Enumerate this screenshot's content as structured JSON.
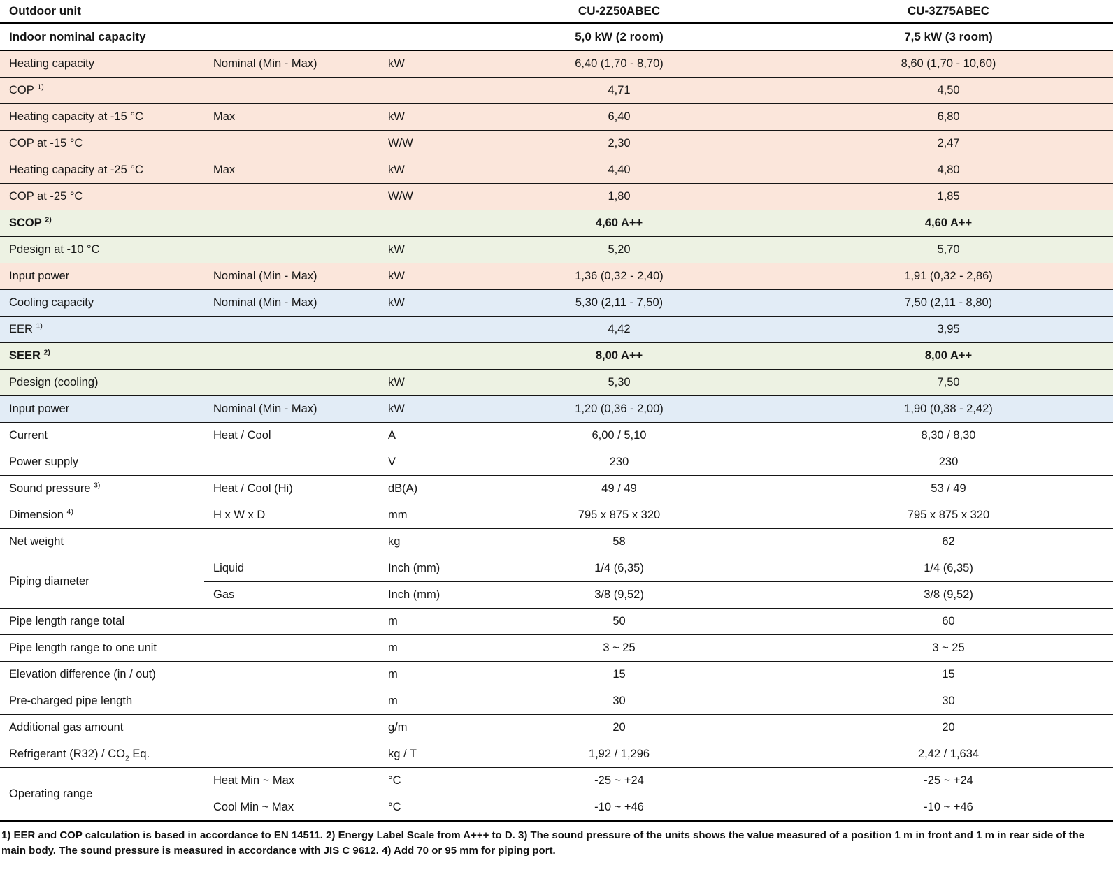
{
  "header": {
    "label": "Outdoor unit",
    "models": [
      "CU-2Z50ABEC",
      "CU-3Z75ABEC"
    ]
  },
  "subheader": {
    "label": "Indoor nominal capacity",
    "values": [
      "5,0 kW (2 room)",
      "7,5 kW (3 room)"
    ]
  },
  "colors": {
    "heating_row": "#fbe6db",
    "seasonal_row": "#edf2e3",
    "cooling_row": "#e2ecf6",
    "border": "#161616"
  },
  "rows": [
    {
      "label": "Heating capacity",
      "sub": "Nominal (Min - Max)",
      "unit": "kW",
      "v": [
        "6,40 (1,70 - 8,70)",
        "8,60 (1,70 - 10,60)"
      ],
      "bg": "pink"
    },
    {
      "label": "COP",
      "sup": "1)",
      "sub": "",
      "unit": "",
      "v": [
        "4,71",
        "4,50"
      ],
      "bg": "pink"
    },
    {
      "label": "Heating capacity at -15 °C",
      "sub": "Max",
      "unit": "kW",
      "v": [
        "6,40",
        "6,80"
      ],
      "bg": "pink"
    },
    {
      "label": "COP at -15 °C",
      "sub": "",
      "unit": "W/W",
      "v": [
        "2,30",
        "2,47"
      ],
      "bg": "pink"
    },
    {
      "label": "Heating capacity at -25 °C",
      "sub": "Max",
      "unit": "kW",
      "v": [
        "4,40",
        "4,80"
      ],
      "bg": "pink"
    },
    {
      "label": "COP at -25 °C",
      "sub": "",
      "unit": "W/W",
      "v": [
        "1,80",
        "1,85"
      ],
      "bg": "pink"
    },
    {
      "label": "SCOP",
      "sup": "2)",
      "sub": "",
      "unit": "",
      "v": [
        "4,60 A++",
        "4,60 A++"
      ],
      "bg": "green",
      "bold": true
    },
    {
      "label": "Pdesign at -10 °C",
      "sub": "",
      "unit": "kW",
      "v": [
        "5,20",
        "5,70"
      ],
      "bg": "green"
    },
    {
      "label": "Input power",
      "sub": "Nominal (Min - Max)",
      "unit": "kW",
      "v": [
        "1,36 (0,32 - 2,40)",
        "1,91 (0,32 - 2,86)"
      ],
      "bg": "pink"
    },
    {
      "label": "Cooling capacity",
      "sub": "Nominal (Min - Max)",
      "unit": "kW",
      "v": [
        "5,30 (2,11 - 7,50)",
        "7,50 (2,11 - 8,80)"
      ],
      "bg": "blue"
    },
    {
      "label": "EER",
      "sup": "1)",
      "sub": "",
      "unit": "",
      "v": [
        "4,42",
        "3,95"
      ],
      "bg": "blue"
    },
    {
      "label": "SEER",
      "sup": "2)",
      "sub": "",
      "unit": "",
      "v": [
        "8,00 A++",
        "8,00 A++"
      ],
      "bg": "green",
      "bold": true
    },
    {
      "label": "Pdesign (cooling)",
      "sub": "",
      "unit": "kW",
      "v": [
        "5,30",
        "7,50"
      ],
      "bg": "green"
    },
    {
      "label": "Input power",
      "sub": "Nominal (Min - Max)",
      "unit": "kW",
      "v": [
        "1,20 (0,36 - 2,00)",
        "1,90 (0,38 - 2,42)"
      ],
      "bg": "blue"
    },
    {
      "label": "Current",
      "sub": "Heat / Cool",
      "unit": "A",
      "v": [
        "6,00 / 5,10",
        "8,30 / 8,30"
      ],
      "bg": "white"
    },
    {
      "label": "Power supply",
      "sub": "",
      "unit": "V",
      "v": [
        "230",
        "230"
      ],
      "bg": "white"
    },
    {
      "label": "Sound pressure",
      "sup": "3)",
      "sub": "Heat / Cool (Hi)",
      "unit": "dB(A)",
      "v": [
        "49 / 49",
        "53 / 49"
      ],
      "bg": "white"
    },
    {
      "label": "Dimension",
      "sup": "4)",
      "sub": "H x W x D",
      "unit": "mm",
      "v": [
        "795 x 875 x 320",
        "795 x 875 x 320"
      ],
      "bg": "white"
    },
    {
      "label": "Net weight",
      "sub": "",
      "unit": "kg",
      "v": [
        "58",
        "62"
      ],
      "bg": "white"
    },
    {
      "label": "Piping diameter",
      "rowspan": 2,
      "sub": "Liquid",
      "unit": "Inch (mm)",
      "v": [
        "1/4 (6,35)",
        "1/4 (6,35)"
      ],
      "bg": "white"
    },
    {
      "skip": true,
      "sub": "Gas",
      "unit": "Inch (mm)",
      "v": [
        "3/8 (9,52)",
        "3/8 (9,52)"
      ],
      "bg": "white"
    },
    {
      "label": "Pipe length range total",
      "sub": "",
      "unit": "m",
      "v": [
        "50",
        "60"
      ],
      "bg": "white"
    },
    {
      "label": "Pipe length range to one unit",
      "sub": "",
      "unit": "m",
      "v": [
        "3 ~ 25",
        "3 ~ 25"
      ],
      "bg": "white"
    },
    {
      "label": "Elevation difference (in / out)",
      "sub": "",
      "unit": "m",
      "v": [
        "15",
        "15"
      ],
      "bg": "white"
    },
    {
      "label": "Pre-charged pipe length",
      "sub": "",
      "unit": "m",
      "v": [
        "30",
        "30"
      ],
      "bg": "white"
    },
    {
      "label": "Additional gas amount",
      "sub": "",
      "unit": "g/m",
      "v": [
        "20",
        "20"
      ],
      "bg": "white"
    },
    {
      "label": "Refrigerant (R32) / CO",
      "sub2": "2",
      "label_after": " Eq.",
      "sub": "",
      "unit": "kg / T",
      "v": [
        "1,92 / 1,296",
        "2,42 / 1,634"
      ],
      "bg": "white"
    },
    {
      "label": "Operating range",
      "rowspan": 2,
      "sub": "Heat Min ~ Max",
      "unit": "°C",
      "v": [
        "-25 ~ +24",
        "-25 ~ +24"
      ],
      "bg": "white"
    },
    {
      "skip": true,
      "sub": "Cool Min ~ Max",
      "unit": "°C",
      "v": [
        "-10 ~ +46",
        "-10 ~ +46"
      ],
      "bg": "white"
    }
  ],
  "footnote": "1) EER and COP calculation is based in accordance to EN 14511. 2) Energy Label Scale from A+++ to D. 3) The sound pressure of the units shows the value measured of a position 1 m in front and 1 m in rear side of the main body. The sound pressure is measured in accordance with JIS C 9612. 4) Add 70 or 95 mm for piping port."
}
